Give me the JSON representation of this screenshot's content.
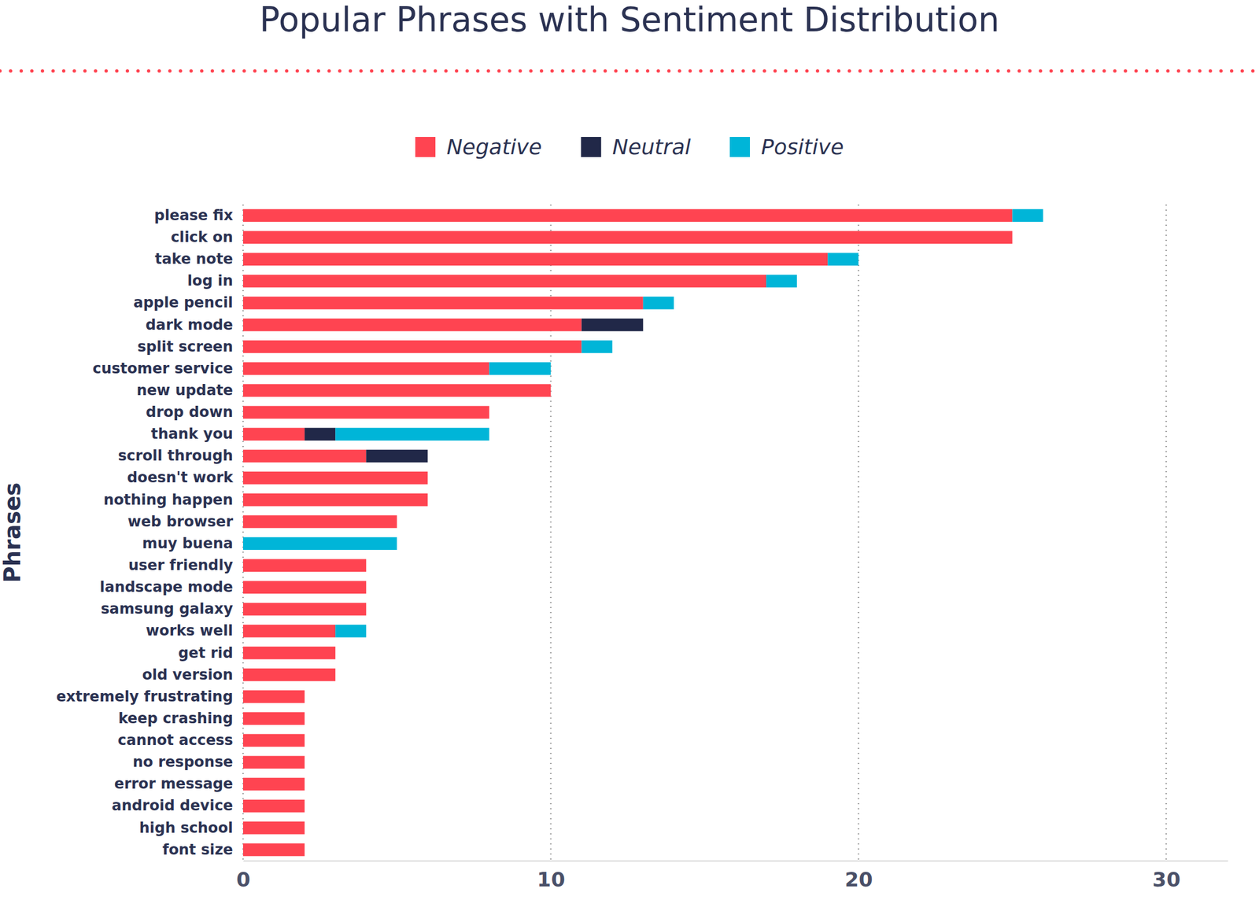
{
  "chart_data": {
    "type": "bar",
    "title": "Popular Phrases with Sentiment Distribution",
    "y_label": "Phrases",
    "orientation": "horizontal",
    "stacked": true,
    "grid": true,
    "legend": "top",
    "categories": [
      "please fix",
      "click on",
      "take note",
      "log in",
      "apple pencil",
      "dark mode",
      "split screen",
      "customer service",
      "new update",
      "drop down",
      "thank you",
      "scroll through",
      "doesn't work",
      "nothing happen",
      "web browser",
      "muy buena",
      "user friendly",
      "landscape mode",
      "samsung galaxy",
      "works well",
      "get rid",
      "old version",
      "extremely frustrating",
      "keep crashing",
      "cannot access",
      "no response",
      "error message",
      "android device",
      "high school",
      "font size"
    ],
    "series": [
      {
        "name": "Negative",
        "color": "#ff4451",
        "values": [
          25,
          25,
          19,
          17,
          13,
          11,
          11,
          8,
          10,
          8,
          2,
          4,
          6,
          6,
          5,
          0,
          4,
          4,
          4,
          3,
          3,
          3,
          2,
          2,
          2,
          2,
          2,
          2,
          2,
          2
        ]
      },
      {
        "name": "Neutral",
        "color": "#212848",
        "values": [
          0,
          0,
          0,
          0,
          0,
          2,
          0,
          0,
          0,
          0,
          1,
          2,
          0,
          0,
          0,
          0,
          0,
          0,
          0,
          0,
          0,
          0,
          0,
          0,
          0,
          0,
          0,
          0,
          0,
          0
        ]
      },
      {
        "name": "Positive",
        "color": "#00b5d8",
        "values": [
          1,
          0,
          1,
          1,
          1,
          0,
          1,
          2,
          0,
          0,
          5,
          0,
          0,
          0,
          0,
          5,
          0,
          0,
          0,
          1,
          0,
          0,
          0,
          0,
          0,
          0,
          0,
          0,
          0,
          0
        ]
      }
    ],
    "xlim": [
      0,
      32
    ],
    "xticks": [
      0,
      10,
      20,
      30
    ]
  }
}
